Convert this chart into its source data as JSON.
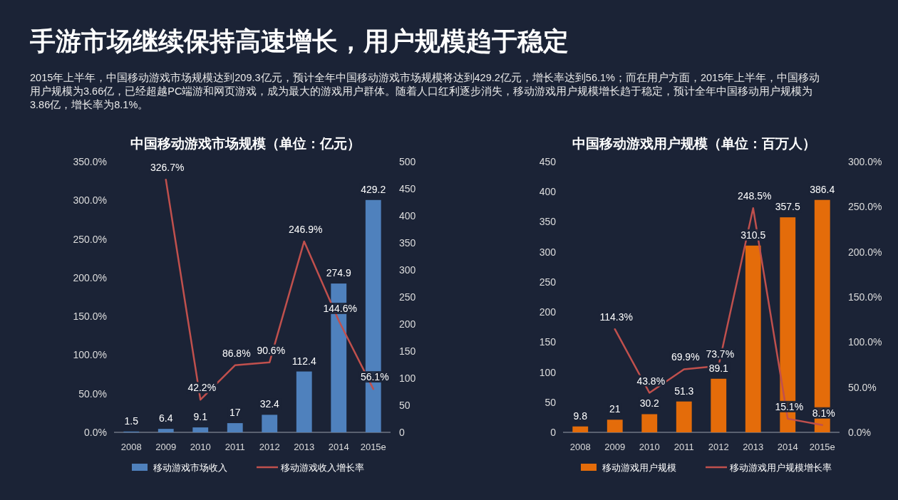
{
  "chart_data": [
    {
      "type": "bar",
      "title": "中国移动游戏市场规模（单位：亿元）",
      "annotations": [
        "手游市场继续保持高速增长，用户规模趋于稳定",
        "2015年上半年，中国移动游戏市场规模达到209.3亿元，预计全年中国移动游戏市场规模将达到429.2亿元，增长率达到56.1%；而在用户方面，2015年上半年，中国移动用户规模为3.66亿，已经超越PC端游和网页游戏，成为最大的游戏用户群体。随着人口红利逐步消失，移动游戏用户规模增长趋于稳定，预计全年中国移动用户规模为3.86亿，增长率为8.1%。"
      ],
      "categories": [
        "2008",
        "2009",
        "2010",
        "2011",
        "2012",
        "2013",
        "2014",
        "2015e"
      ],
      "series": [
        {
          "name": "移动游戏市场收入",
          "axis": "y2",
          "color": "#4f81bd",
          "values": [
            1.5,
            6.4,
            9.1,
            17,
            32.4,
            112.4,
            274.9,
            429.2
          ],
          "value_labels": [
            "1.5",
            "6.4",
            "9.1",
            "17",
            "32.4",
            "112.4",
            "274.9",
            "429.2"
          ]
        },
        {
          "name": "移动游戏收入增长率",
          "type": "line",
          "axis": "y",
          "color": "#c0504d",
          "values": [
            null,
            326.7,
            42.2,
            86.8,
            90.6,
            246.9,
            144.6,
            56.1
          ],
          "value_labels": [
            null,
            "326.7%",
            "42.2%",
            "86.8%",
            "90.6%",
            "246.9%",
            "144.6%",
            "56.1%"
          ]
        }
      ],
      "ylim": [
        0,
        350
      ],
      "yticks": [
        {
          "value": 0,
          "label": "0.0%"
        },
        {
          "value": 50,
          "label": "50.0%"
        },
        {
          "value": 100,
          "label": "100.0%"
        },
        {
          "value": 150,
          "label": "150.0%"
        },
        {
          "value": 200,
          "label": "200.0%"
        },
        {
          "value": 250,
          "label": "250.0%"
        },
        {
          "value": 300,
          "label": "300.0%"
        },
        {
          "value": 350,
          "label": "350.0%"
        }
      ],
      "y2lim": [
        0,
        500
      ],
      "y2ticks": [
        0,
        50,
        100,
        150,
        200,
        250,
        300,
        350,
        400,
        450,
        500
      ],
      "legend": "bottom"
    },
    {
      "type": "bar",
      "title": "中国移动游戏用户规模（单位：百万人）",
      "categories": [
        "2008",
        "2009",
        "2010",
        "2011",
        "2012",
        "2013",
        "2014",
        "2015e"
      ],
      "series": [
        {
          "name": "移动游戏用户规模",
          "axis": "y",
          "color": "#e46c0a",
          "values": [
            9.8,
            21,
            30.2,
            51.3,
            89.1,
            310.5,
            357.5,
            386.4
          ],
          "value_labels": [
            "9.8",
            "21",
            "30.2",
            "51.3",
            "89.1",
            "310.5",
            "357.5",
            "386.4"
          ]
        },
        {
          "name": "移动游戏用户规模增长率",
          "type": "line",
          "axis": "y2",
          "color": "#c0504d",
          "values": [
            null,
            114.3,
            43.8,
            69.9,
            73.7,
            248.5,
            15.1,
            8.1
          ],
          "value_labels": [
            null,
            "114.3%",
            "43.8%",
            "69.9%",
            "73.7%",
            "248.5%",
            "15.1%",
            "8.1%"
          ]
        }
      ],
      "ylim": [
        0,
        450
      ],
      "yticks": [
        0,
        50,
        100,
        150,
        200,
        250,
        300,
        350,
        400,
        450
      ],
      "y2lim": [
        0,
        300
      ],
      "y2ticks": [
        {
          "value": 0,
          "label": "0.0%"
        },
        {
          "value": 50,
          "label": "50.0%"
        },
        {
          "value": 100,
          "label": "100.0%"
        },
        {
          "value": 150,
          "label": "150.0%"
        },
        {
          "value": 200,
          "label": "200.0%"
        },
        {
          "value": 250,
          "label": "250.0%"
        },
        {
          "value": 300,
          "label": "300.0%"
        }
      ],
      "legend": "bottom"
    }
  ]
}
